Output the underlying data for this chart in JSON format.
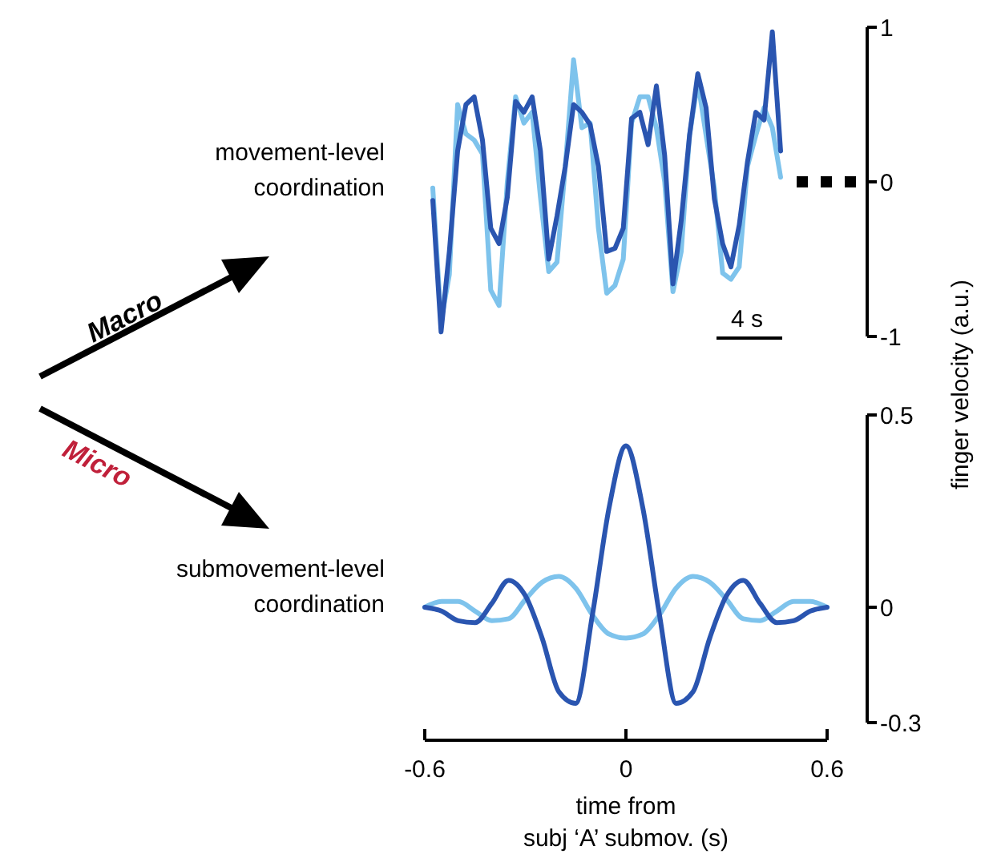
{
  "chart_data": [
    {
      "type": "line",
      "title": "movement-level\ncoordination",
      "ylabel": "finger velocity (a.u.)",
      "annotations": [
        "Macro",
        "4 s"
      ],
      "ylim": [
        -1,
        1
      ],
      "yticks": [
        -1,
        0,
        1
      ],
      "tick_labels": "y",
      "categories": [
        null,
        null,
        null,
        null,
        null,
        null,
        null,
        null,
        null,
        null,
        null,
        null,
        null,
        null,
        null,
        null,
        null,
        null,
        null,
        null,
        null,
        null,
        null,
        null,
        null,
        null,
        null,
        null,
        null,
        null,
        null,
        null,
        null,
        null,
        null,
        null,
        null,
        null,
        null,
        null,
        null,
        null,
        null
      ],
      "series": [
        {
          "color": "#7ec3ec",
          "values": [
            -0.04,
            -0.9,
            -0.6,
            0.5,
            0.31,
            0.27,
            0.18,
            -0.7,
            -0.8,
            0.0,
            0.55,
            0.38,
            0.45,
            -0.1,
            -0.58,
            -0.52,
            0.1,
            0.79,
            0.35,
            0.38,
            -0.3,
            -0.72,
            -0.67,
            -0.5,
            0.38,
            0.55,
            0.55,
            0.35,
            0.0,
            -0.71,
            -0.45,
            0.3,
            0.65,
            0.3,
            -0.04,
            -0.59,
            -0.63,
            -0.55,
            0.1,
            0.3,
            0.48,
            0.35,
            0.03
          ]
        },
        {
          "color": "#2a55b0",
          "values": [
            -0.12,
            -0.97,
            -0.45,
            0.2,
            0.5,
            0.55,
            0.27,
            -0.3,
            -0.4,
            -0.1,
            0.52,
            0.45,
            0.55,
            0.2,
            -0.5,
            -0.22,
            0.1,
            0.5,
            0.45,
            0.37,
            0.1,
            -0.45,
            -0.43,
            -0.3,
            0.41,
            0.45,
            0.24,
            0.62,
            0.17,
            -0.66,
            -0.25,
            0.3,
            0.7,
            0.48,
            -0.11,
            -0.4,
            -0.55,
            -0.28,
            0.13,
            0.45,
            0.4,
            0.97,
            0.2
          ]
        }
      ]
    },
    {
      "type": "line",
      "title": "submovement-level\ncoordination",
      "xlabel": "time from\nsubj ‘A’ submov. (s)",
      "annotations": [
        "Micro"
      ],
      "xlim": [
        -0.6,
        0.6
      ],
      "xticks": [
        -0.6,
        0,
        0.6
      ],
      "ylim": [
        -0.3,
        0.5
      ],
      "yticks": [
        -0.3,
        0,
        0.5
      ],
      "x": [
        -0.6,
        -0.55,
        -0.5,
        -0.45,
        -0.4,
        -0.35,
        -0.3,
        -0.25,
        -0.2,
        -0.15,
        -0.1,
        -0.05,
        0,
        0.05,
        0.1,
        0.15,
        0.2,
        0.25,
        0.3,
        0.35,
        0.4,
        0.45,
        0.5,
        0.55,
        0.6
      ],
      "series": [
        {
          "color": "#7ec3ec",
          "values": [
            0,
            0.015,
            0.015,
            -0.01,
            -0.035,
            -0.03,
            0.02,
            0.065,
            0.08,
            0.05,
            -0.02,
            -0.07,
            -0.08,
            -0.07,
            -0.02,
            0.05,
            0.08,
            0.065,
            0.02,
            -0.03,
            -0.035,
            -0.01,
            0.015,
            0.015,
            0
          ]
        },
        {
          "color": "#2a55b0",
          "values": [
            0,
            -0.01,
            -0.035,
            -0.04,
            0.01,
            0.07,
            0.03,
            -0.08,
            -0.22,
            -0.25,
            -0.02,
            0.26,
            0.42,
            0.26,
            -0.02,
            -0.25,
            -0.22,
            -0.08,
            0.03,
            0.07,
            0.01,
            -0.04,
            -0.035,
            -0.01,
            0
          ]
        }
      ]
    }
  ]
}
